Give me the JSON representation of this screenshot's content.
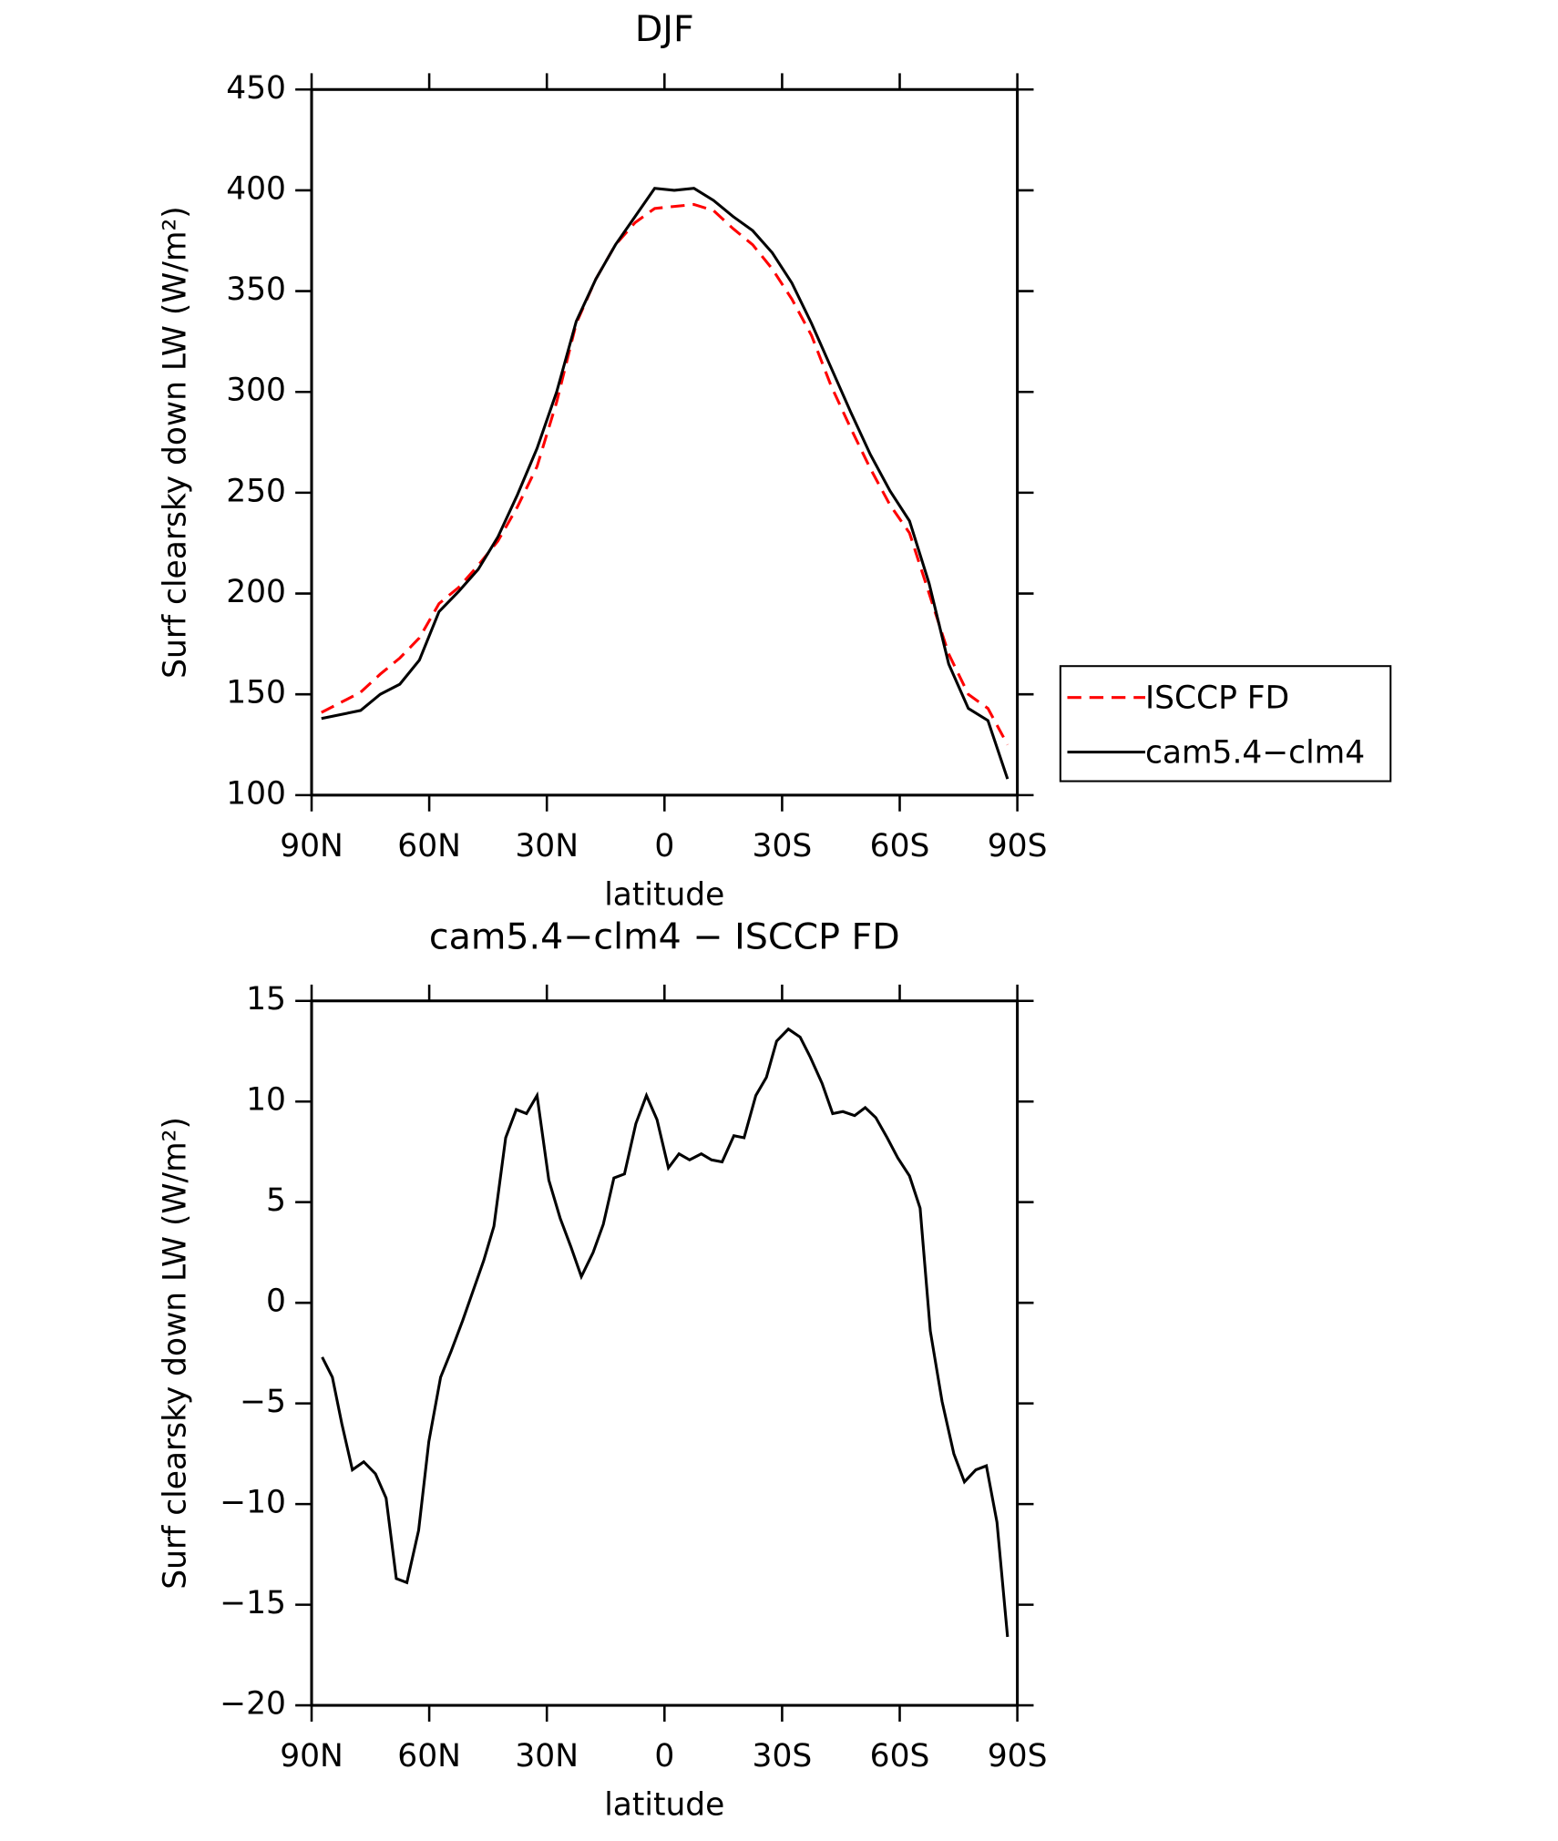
{
  "chart_data": [
    {
      "type": "line",
      "title": "DJF",
      "xlabel": "latitude",
      "ylabel": "Surf clearsky down LW (W/m²)",
      "x": [
        87.5,
        82.5,
        77.5,
        72.5,
        67.5,
        62.5,
        57.5,
        52.5,
        47.5,
        42.5,
        37.5,
        32.5,
        27.5,
        22.5,
        17.5,
        12.5,
        7.5,
        2.5,
        -2.5,
        -7.5,
        -12.5,
        -17.5,
        -22.5,
        -27.5,
        -32.5,
        -37.5,
        -42.5,
        -47.5,
        -52.5,
        -57.5,
        -62.5,
        -67.5,
        -72.5,
        -77.5,
        -82.5,
        -87.5
      ],
      "series": [
        {
          "name": "ISCCP FD",
          "color": "#ff0000",
          "style": "dashed",
          "values": [
            141,
            146,
            151,
            160,
            168,
            178,
            195,
            203,
            214,
            226,
            243,
            263,
            295,
            334,
            356,
            373,
            384,
            391,
            392,
            393,
            390,
            381,
            373,
            361,
            346,
            328,
            303,
            282,
            262,
            244,
            230,
            200,
            170,
            150,
            143,
            125
          ]
        },
        {
          "name": "cam5.4−clm4",
          "color": "#000000",
          "style": "solid",
          "values": [
            138,
            140,
            142,
            150,
            155,
            167,
            191,
            201,
            212,
            228,
            249,
            272,
            300,
            335,
            356,
            373,
            387,
            401,
            400,
            401,
            395,
            387,
            380,
            369,
            354,
            334,
            312,
            290,
            269,
            251,
            236,
            205,
            165,
            143,
            137,
            108
          ]
        }
      ],
      "xlim": [
        90,
        -90
      ],
      "xticks": [
        {
          "value": 90,
          "label": "90N"
        },
        {
          "value": 60,
          "label": "60N"
        },
        {
          "value": 30,
          "label": "30N"
        },
        0,
        {
          "value": -30,
          "label": "30S"
        },
        {
          "value": -60,
          "label": "60S"
        },
        {
          "value": -90,
          "label": "90S"
        }
      ],
      "ylim": [
        100,
        450
      ],
      "yticks": [
        100,
        150,
        200,
        250,
        300,
        350,
        400,
        450
      ],
      "legend": "outside-right"
    },
    {
      "type": "line",
      "title": "cam5.4−clm4 − ISCCP FD",
      "xlabel": "latitude",
      "ylabel": "Surf clearsky down LW (W/m²)",
      "x": [
        87.3,
        84.7,
        82.3,
        79.6,
        76.7,
        73.7,
        71.0,
        68.4,
        65.7,
        62.7,
        60.1,
        57.1,
        54.4,
        51.5,
        48.8,
        46.1,
        43.5,
        40.5,
        37.8,
        35.2,
        32.5,
        29.5,
        26.6,
        23.9,
        21.2,
        18.2,
        15.6,
        12.9,
        10.2,
        7.3,
        4.6,
        1.9,
        -1.0,
        -3.7,
        -6.4,
        -9.4,
        -12.0,
        -14.7,
        -17.7,
        -20.3,
        -23.3,
        -26.0,
        -28.6,
        -31.6,
        -34.6,
        -37.2,
        -40.2,
        -42.9,
        -45.5,
        -48.5,
        -51.2,
        -53.9,
        -56.8,
        -59.5,
        -62.5,
        -65.2,
        -67.8,
        -70.8,
        -73.8,
        -76.5,
        -79.4,
        -82.1,
        -84.8,
        -87.5
      ],
      "values": [
        -2.7,
        -3.7,
        -6.0,
        -8.3,
        -7.9,
        -8.5,
        -9.7,
        -13.7,
        -13.9,
        -11.3,
        -6.9,
        -3.7,
        -2.4,
        -0.9,
        0.6,
        2.1,
        3.8,
        8.2,
        9.6,
        9.4,
        10.3,
        6.1,
        4.2,
        2.8,
        1.3,
        2.5,
        3.9,
        6.2,
        6.4,
        8.9,
        10.3,
        9.1,
        6.7,
        7.4,
        7.1,
        7.4,
        7.1,
        7.0,
        8.3,
        8.2,
        10.3,
        11.2,
        13.0,
        13.6,
        13.2,
        12.2,
        10.9,
        9.4,
        9.5,
        9.3,
        9.7,
        9.2,
        8.2,
        7.2,
        6.3,
        4.7,
        -1.4,
        -4.9,
        -7.5,
        -8.9,
        -8.3,
        -8.1,
        -10.9,
        -16.6
      ],
      "color": "#000000",
      "xlim": [
        90,
        -90
      ],
      "xticks": [
        {
          "value": 90,
          "label": "90N"
        },
        {
          "value": 60,
          "label": "60N"
        },
        {
          "value": 30,
          "label": "30N"
        },
        0,
        {
          "value": -30,
          "label": "30S"
        },
        {
          "value": -60,
          "label": "60S"
        },
        {
          "value": -90,
          "label": "90S"
        }
      ],
      "ylim": [
        -20,
        15
      ],
      "yticks": [
        {
          "value": -20,
          "label": "−20"
        },
        {
          "value": -15,
          "label": "−15"
        },
        {
          "value": -10,
          "label": "−10"
        },
        {
          "value": -5,
          "label": "−5"
        },
        0,
        5,
        10,
        15
      ]
    }
  ]
}
